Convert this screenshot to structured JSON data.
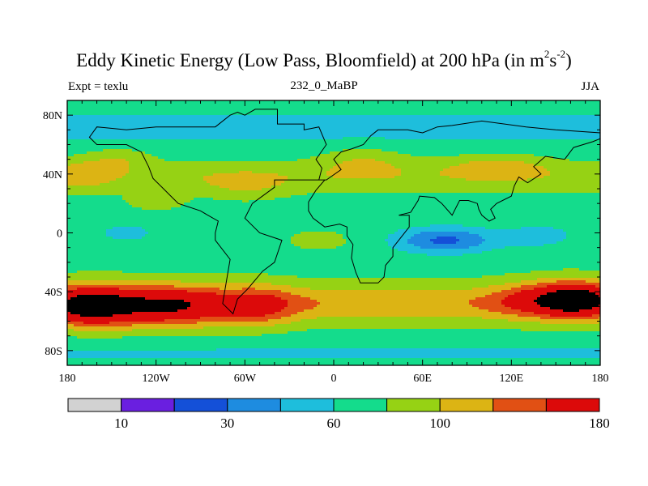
{
  "chart_data": {
    "type": "heatmap",
    "title_text": "Eddy Kinetic Energy (Low Pass, Bloomfield) at 200 hPa (in m",
    "title_sup1": "2",
    "title_mid": "s",
    "title_sup2": "-2",
    "title_end": ")",
    "subtitle_left": "Expt = texlu",
    "subtitle_center": "232_0_MaBP",
    "subtitle_right": "JJA",
    "x_range": [
      -180,
      180
    ],
    "y_range": [
      -90,
      90
    ],
    "x_ticks": [
      {
        "value": -180,
        "label": "180"
      },
      {
        "value": -120,
        "label": "120W"
      },
      {
        "value": -60,
        "label": "60W"
      },
      {
        "value": 0,
        "label": "0"
      },
      {
        "value": 60,
        "label": "60E"
      },
      {
        "value": 120,
        "label": "120E"
      },
      {
        "value": 180,
        "label": "180"
      }
    ],
    "y_ticks": [
      {
        "value": 80,
        "label": "80N"
      },
      {
        "value": 40,
        "label": "40N"
      },
      {
        "value": 0,
        "label": "0"
      },
      {
        "value": -40,
        "label": "40S"
      },
      {
        "value": -80,
        "label": "80S"
      }
    ],
    "contour_levels": [
      10,
      20,
      30,
      45,
      60,
      80,
      100,
      120,
      140,
      180
    ],
    "color_bar": {
      "colors": [
        "#d2d2d2",
        "#6a1fe0",
        "#1450d8",
        "#1e8ce0",
        "#1ebedc",
        "#14dc8c",
        "#96d214",
        "#dcb414",
        "#e15014",
        "#dc0a0a"
      ],
      "labels": [
        {
          "value": 10,
          "label": "10"
        },
        {
          "value": 30,
          "label": "30"
        },
        {
          "value": 60,
          "label": "60"
        },
        {
          "value": 100,
          "label": "100"
        },
        {
          "value": 180,
          "label": "180"
        }
      ]
    },
    "continent_outline": [
      [
        -65,
        82
      ],
      [
        -60,
        80
      ],
      [
        -53,
        84
      ],
      [
        -38,
        84
      ],
      [
        -38,
        74
      ],
      [
        -20,
        74
      ],
      [
        -20,
        70
      ],
      [
        -10,
        72
      ],
      [
        -5,
        60
      ],
      [
        -12,
        50
      ],
      [
        -8,
        44
      ],
      [
        -10,
        36
      ],
      [
        -5,
        36
      ],
      [
        5,
        43
      ],
      [
        0,
        50
      ],
      [
        5,
        55
      ],
      [
        12,
        57
      ],
      [
        20,
        60
      ],
      [
        25,
        66
      ],
      [
        30,
        70
      ],
      [
        50,
        70
      ],
      [
        60,
        68
      ],
      [
        70,
        72
      ],
      [
        80,
        73
      ],
      [
        100,
        76
      ],
      [
        130,
        72
      ],
      [
        150,
        70
      ],
      [
        180,
        68
      ],
      [
        180,
        64
      ],
      [
        175,
        62
      ],
      [
        162,
        58
      ],
      [
        156,
        50
      ],
      [
        143,
        52
      ],
      [
        135,
        45
      ],
      [
        140,
        40
      ],
      [
        131,
        34
      ],
      [
        125,
        38
      ],
      [
        122,
        32
      ],
      [
        120,
        25
      ],
      [
        110,
        20
      ],
      [
        106,
        16
      ],
      [
        109,
        10
      ],
      [
        105,
        8
      ],
      [
        100,
        12
      ],
      [
        98,
        16
      ],
      [
        97,
        20
      ],
      [
        91,
        22
      ],
      [
        85,
        22
      ],
      [
        80,
        12
      ],
      [
        73,
        20
      ],
      [
        68,
        24
      ],
      [
        58,
        25
      ],
      [
        57,
        22
      ],
      [
        52,
        14
      ],
      [
        44,
        12
      ],
      [
        51,
        12
      ],
      [
        51,
        4
      ],
      [
        40,
        -10
      ],
      [
        40,
        -16
      ],
      [
        35,
        -22
      ],
      [
        34,
        -30
      ],
      [
        30,
        -34
      ],
      [
        18,
        -34
      ],
      [
        15,
        -27
      ],
      [
        12,
        -17
      ],
      [
        13,
        -8
      ],
      [
        9,
        -2
      ],
      [
        9,
        4
      ],
      [
        4,
        6
      ],
      [
        -6,
        4
      ],
      [
        -14,
        10
      ],
      [
        -17,
        15
      ],
      [
        -17,
        21
      ],
      [
        -12,
        29
      ],
      [
        -6,
        36
      ],
      [
        -40,
        36
      ],
      [
        -40,
        31
      ],
      [
        -55,
        20
      ],
      [
        -60,
        10
      ],
      [
        -50,
        0
      ],
      [
        -35,
        -5
      ],
      [
        -40,
        -20
      ],
      [
        -48,
        -26
      ],
      [
        -58,
        -38
      ],
      [
        -65,
        -45
      ],
      [
        -68,
        -55
      ],
      [
        -75,
        -48
      ],
      [
        -72,
        -30
      ],
      [
        -70,
        -18
      ],
      [
        -80,
        -5
      ],
      [
        -80,
        0
      ],
      [
        -78,
        8
      ],
      [
        -85,
        12
      ],
      [
        -90,
        15
      ],
      [
        -105,
        20
      ],
      [
        -110,
        25
      ],
      [
        -115,
        30
      ],
      [
        -122,
        37
      ],
      [
        -125,
        45
      ],
      [
        -130,
        55
      ],
      [
        -140,
        60
      ],
      [
        -160,
        60
      ],
      [
        -165,
        65
      ],
      [
        -160,
        72
      ],
      [
        -140,
        70
      ],
      [
        -120,
        72
      ],
      [
        -100,
        72
      ],
      [
        -80,
        72
      ],
      [
        -70,
        80
      ],
      [
        -65,
        82
      ]
    ]
  }
}
